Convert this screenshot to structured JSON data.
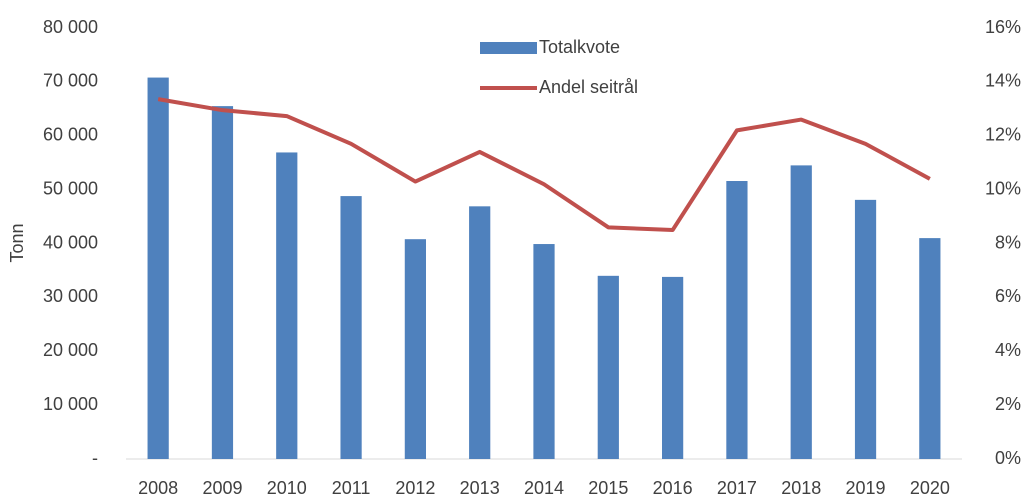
{
  "chart_data": {
    "type": "bar_line",
    "y_axis_label": "Tonn",
    "categories": [
      "2008",
      "2009",
      "2010",
      "2011",
      "2012",
      "2013",
      "2014",
      "2015",
      "2016",
      "2017",
      "2018",
      "2019",
      "2020"
    ],
    "series": [
      {
        "name": "Totalkvote",
        "type": "bar",
        "color": "#4f81bd",
        "values": [
          70800,
          65500,
          56900,
          48800,
          40800,
          46900,
          39900,
          34000,
          33800,
          51600,
          54500,
          48100,
          41000
        ]
      },
      {
        "name": "Andel seitrål",
        "type": "line",
        "axis": "y2",
        "color": "#c0504d",
        "values": [
          13.36,
          12.95,
          12.73,
          11.7,
          10.3,
          11.4,
          10.2,
          8.6,
          8.5,
          12.2,
          12.6,
          11.7,
          10.4
        ]
      }
    ],
    "ylim": [
      0,
      80000
    ],
    "yticks": [
      {
        "value": 0,
        "label": "-"
      },
      {
        "value": 10000,
        "label": "10 000"
      },
      {
        "value": 20000,
        "label": "20 000"
      },
      {
        "value": 30000,
        "label": "30 000"
      },
      {
        "value": 40000,
        "label": "40 000"
      },
      {
        "value": 50000,
        "label": "50 000"
      },
      {
        "value": 60000,
        "label": "60 000"
      },
      {
        "value": 70000,
        "label": "70 000"
      },
      {
        "value": 80000,
        "label": "80 000"
      }
    ],
    "y2lim": [
      0,
      16
    ],
    "y2ticks": [
      {
        "value": 0,
        "label": "0%"
      },
      {
        "value": 2,
        "label": "2%"
      },
      {
        "value": 4,
        "label": "4%"
      },
      {
        "value": 6,
        "label": "6%"
      },
      {
        "value": 8,
        "label": "8%"
      },
      {
        "value": 10,
        "label": "10%"
      },
      {
        "value": 12,
        "label": "12%"
      },
      {
        "value": 14,
        "label": "14%"
      },
      {
        "value": 16,
        "label": "16%"
      }
    ],
    "grid": false
  }
}
